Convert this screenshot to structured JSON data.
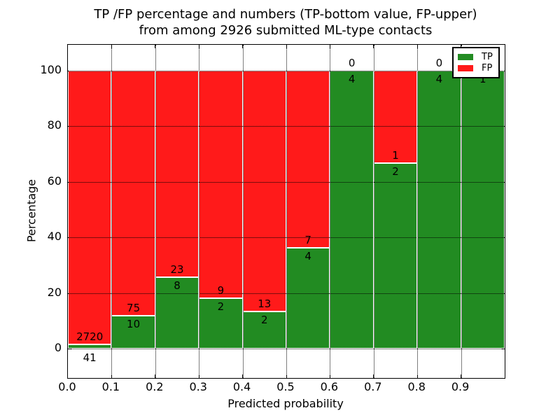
{
  "title": {
    "line1": "TP /FP percentage and numbers (TP-bottom value, FP-upper)",
    "line2": "from among 2926 submitted ML-type contacts"
  },
  "axes": {
    "xlabel": "Predicted probability",
    "ylabel": "Percentage",
    "x_tick_labels": [
      "0.0",
      "0.1",
      "0.2",
      "0.3",
      "0.4",
      "0.5",
      "0.6",
      "0.7",
      "0.8",
      "0.9"
    ],
    "y_tick_labels": [
      "0",
      "20",
      "40",
      "60",
      "80",
      "100"
    ]
  },
  "legend": {
    "position": "upper right",
    "entries": [
      {
        "label": "TP",
        "color": "#228b22"
      },
      {
        "label": "FP",
        "color": "#ff1a1a"
      }
    ]
  },
  "colors": {
    "tp_green": "#228b22",
    "fp_red": "#ff1a1a",
    "grid": "#000000",
    "background": "#ffffff"
  },
  "chart_data": {
    "type": "bar",
    "stacked": true,
    "normalized_to_percent": true,
    "title": "TP /FP percentage and numbers (TP-bottom value, FP-upper)\nfrom among 2926 submitted ML-type contacts",
    "xlabel": "Predicted probability",
    "ylabel": "Percentage",
    "xlim": [
      0.0,
      1.0
    ],
    "ylim": [
      -11,
      110
    ],
    "grid": true,
    "legend_position": "upper right",
    "total_contacts": 2926,
    "bin_width": 0.1,
    "bin_starts": [
      0.0,
      0.1,
      0.2,
      0.3,
      0.4,
      0.5,
      0.6,
      0.7,
      0.8,
      0.9
    ],
    "x_ticks": [
      0.0,
      0.1,
      0.2,
      0.3,
      0.4,
      0.5,
      0.6,
      0.7,
      0.8,
      0.9
    ],
    "y_ticks": [
      0,
      20,
      40,
      60,
      80,
      100
    ],
    "series": [
      {
        "name": "TP",
        "color": "#228b22",
        "counts": [
          41,
          10,
          8,
          2,
          2,
          4,
          4,
          2,
          4,
          1
        ]
      },
      {
        "name": "FP",
        "color": "#ff1a1a",
        "counts": [
          2720,
          75,
          23,
          9,
          13,
          7,
          0,
          1,
          0,
          0
        ]
      }
    ],
    "tp_percent_per_bin": [
      1.5,
      11.8,
      25.8,
      18.2,
      13.3,
      36.4,
      100.0,
      66.7,
      100.0,
      100.0
    ]
  }
}
